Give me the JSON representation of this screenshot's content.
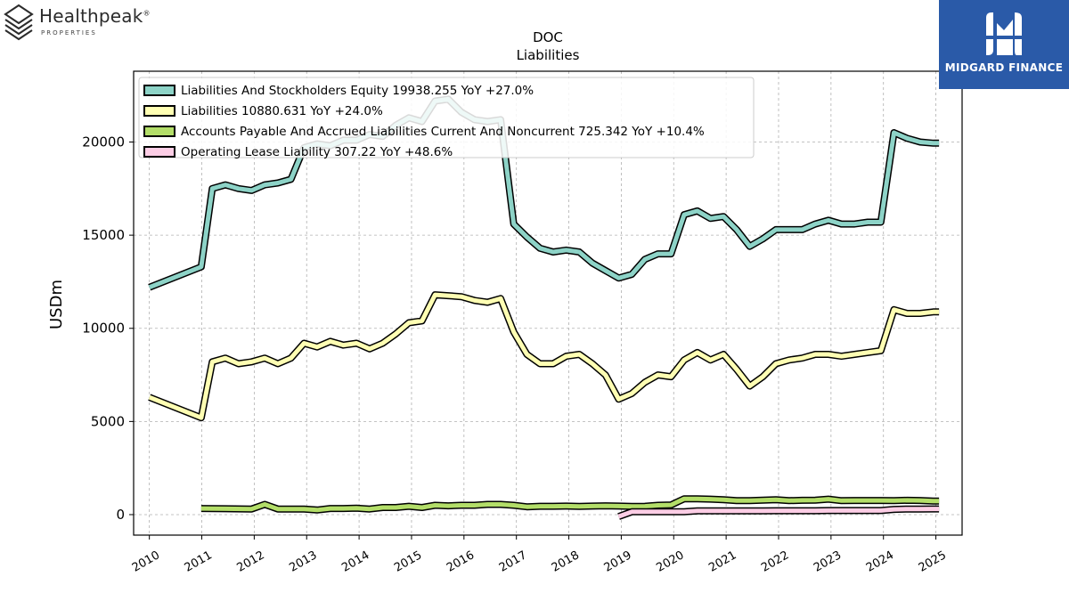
{
  "logos": {
    "left": {
      "text": "Healthpeak",
      "mark": "®",
      "sub": "PROPERTIES",
      "icon": "healthpeak-stack-icon"
    },
    "right": {
      "text": "MIDGARD FINANCE",
      "icon": "midgard-m-icon",
      "color": "#2a5aa8"
    }
  },
  "chart_data": {
    "type": "line",
    "title": "DOC",
    "subtitle": "Liabilities",
    "xlabel": "",
    "ylabel": "USDm",
    "xlim": [
      2009.7,
      2025.5
    ],
    "ylim": [
      -1100,
      23800
    ],
    "grid": true,
    "legend_position": "top-left",
    "x_ticks": [
      "2010",
      "2011",
      "2012",
      "2013",
      "2014",
      "2015",
      "2016",
      "2017",
      "2018",
      "2019",
      "2020",
      "2021",
      "2022",
      "2023",
      "2024",
      "2025"
    ],
    "y_ticks": [
      0,
      5000,
      10000,
      15000,
      20000
    ],
    "series": [
      {
        "name": "Liabilities And Stockholders Equity",
        "legend": "Liabilities And Stockholders Equity  19938.255 YoY +27.0%",
        "color": "#8dd3c7",
        "x": [
          2010.0,
          2010.99,
          2011.2,
          2011.45,
          2011.7,
          2011.95,
          2012.2,
          2012.45,
          2012.7,
          2012.95,
          2013.2,
          2013.45,
          2013.7,
          2013.95,
          2014.2,
          2014.45,
          2014.7,
          2014.95,
          2015.2,
          2015.45,
          2015.7,
          2015.95,
          2016.2,
          2016.45,
          2016.7,
          2016.95,
          2017.2,
          2017.45,
          2017.7,
          2017.95,
          2018.2,
          2018.45,
          2018.7,
          2018.95,
          2019.2,
          2019.45,
          2019.7,
          2019.95,
          2020.2,
          2020.45,
          2020.7,
          2020.95,
          2021.2,
          2021.45,
          2021.7,
          2021.95,
          2022.2,
          2022.45,
          2022.7,
          2022.95,
          2023.2,
          2023.45,
          2023.7,
          2023.95,
          2024.2,
          2024.45,
          2024.7,
          2024.95,
          2025.06
        ],
        "y": [
          12200,
          13300,
          17500,
          17700,
          17500,
          17400,
          17700,
          17800,
          18000,
          19700,
          19900,
          19800,
          20100,
          20100,
          20400,
          20300,
          20900,
          21300,
          21100,
          22200,
          22300,
          21600,
          21200,
          21100,
          21200,
          15600,
          14900,
          14300,
          14100,
          14200,
          14100,
          13500,
          13100,
          12700,
          12900,
          13700,
          14000,
          14000,
          16100,
          16300,
          15900,
          16000,
          15300,
          14400,
          14800,
          15300,
          15300,
          15300,
          15600,
          15800,
          15600,
          15600,
          15700,
          15700,
          20500,
          20200,
          20000,
          19938,
          19938
        ]
      },
      {
        "name": "Liabilities",
        "legend": "Liabilities  10880.631 YoY +24.0%",
        "color": "#ffffb3",
        "x": [
          2010.0,
          2010.99,
          2011.2,
          2011.45,
          2011.7,
          2011.95,
          2012.2,
          2012.45,
          2012.7,
          2012.95,
          2013.2,
          2013.45,
          2013.7,
          2013.95,
          2014.2,
          2014.45,
          2014.7,
          2014.95,
          2015.2,
          2015.45,
          2015.7,
          2015.95,
          2016.2,
          2016.45,
          2016.7,
          2016.95,
          2017.2,
          2017.45,
          2017.7,
          2017.95,
          2018.2,
          2018.45,
          2018.7,
          2018.95,
          2019.2,
          2019.45,
          2019.7,
          2019.95,
          2020.2,
          2020.45,
          2020.7,
          2020.95,
          2021.2,
          2021.45,
          2021.7,
          2021.95,
          2022.2,
          2022.45,
          2022.7,
          2022.95,
          2023.2,
          2023.45,
          2023.7,
          2023.95,
          2024.2,
          2024.45,
          2024.7,
          2024.95,
          2025.06
        ],
        "y": [
          6300,
          5200,
          8200,
          8400,
          8100,
          8200,
          8400,
          8100,
          8400,
          9200,
          9000,
          9300,
          9100,
          9200,
          8900,
          9200,
          9700,
          10300,
          10400,
          11800,
          11750,
          11700,
          11500,
          11400,
          11600,
          9800,
          8600,
          8100,
          8100,
          8500,
          8600,
          8100,
          7500,
          6200,
          6500,
          7100,
          7500,
          7400,
          8300,
          8700,
          8300,
          8600,
          7800,
          6900,
          7400,
          8100,
          8300,
          8400,
          8600,
          8600,
          8500,
          8600,
          8700,
          8800,
          11000,
          10800,
          10800,
          10880,
          10880
        ]
      },
      {
        "name": "Accounts Payable And Accrued Liabilities Current And Noncurrent",
        "legend": "Accounts Payable And Accrued Liabilities Current And Noncurrent  725.342 YoY +10.4%",
        "color": "#b3de69",
        "x": [
          2010.99,
          2011.95,
          2012.2,
          2012.45,
          2012.7,
          2012.95,
          2013.2,
          2013.45,
          2013.7,
          2013.95,
          2014.2,
          2014.45,
          2014.7,
          2014.95,
          2015.2,
          2015.45,
          2015.7,
          2015.95,
          2016.2,
          2016.45,
          2016.7,
          2016.95,
          2017.2,
          2017.45,
          2017.7,
          2017.95,
          2018.2,
          2018.45,
          2018.7,
          2018.95,
          2019.2,
          2019.45,
          2019.7,
          2019.95,
          2020.2,
          2020.45,
          2020.7,
          2020.95,
          2021.2,
          2021.45,
          2021.7,
          2021.95,
          2022.2,
          2022.45,
          2022.7,
          2022.95,
          2023.2,
          2023.45,
          2023.7,
          2023.95,
          2024.2,
          2024.45,
          2024.7,
          2024.95,
          2025.06
        ],
        "y": [
          330,
          300,
          550,
          300,
          300,
          300,
          250,
          330,
          330,
          350,
          300,
          380,
          380,
          450,
          380,
          500,
          470,
          500,
          500,
          550,
          550,
          500,
          420,
          450,
          450,
          460,
          440,
          460,
          470,
          460,
          440,
          450,
          500,
          520,
          850,
          850,
          830,
          800,
          750,
          750,
          780,
          800,
          750,
          770,
          780,
          830,
          750,
          760,
          760,
          760,
          750,
          770,
          760,
          725,
          725
        ]
      },
      {
        "name": "Operating Lease Liability",
        "legend": "Operating Lease Liability  307.22 YoY +48.6%",
        "color": "#fccde5",
        "x": [
          2018.95,
          2019.2,
          2019.45,
          2019.7,
          2019.95,
          2020.2,
          2020.45,
          2020.7,
          2020.95,
          2021.2,
          2021.45,
          2021.7,
          2021.95,
          2022.2,
          2022.45,
          2022.7,
          2022.95,
          2023.2,
          2023.45,
          2023.7,
          2023.95,
          2024.2,
          2024.45,
          2024.7,
          2024.95,
          2025.06
        ],
        "y": [
          -100,
          150,
          150,
          150,
          150,
          150,
          200,
          200,
          200,
          200,
          200,
          200,
          210,
          210,
          210,
          210,
          220,
          220,
          220,
          220,
          220,
          280,
          300,
          300,
          307,
          307
        ]
      }
    ]
  }
}
